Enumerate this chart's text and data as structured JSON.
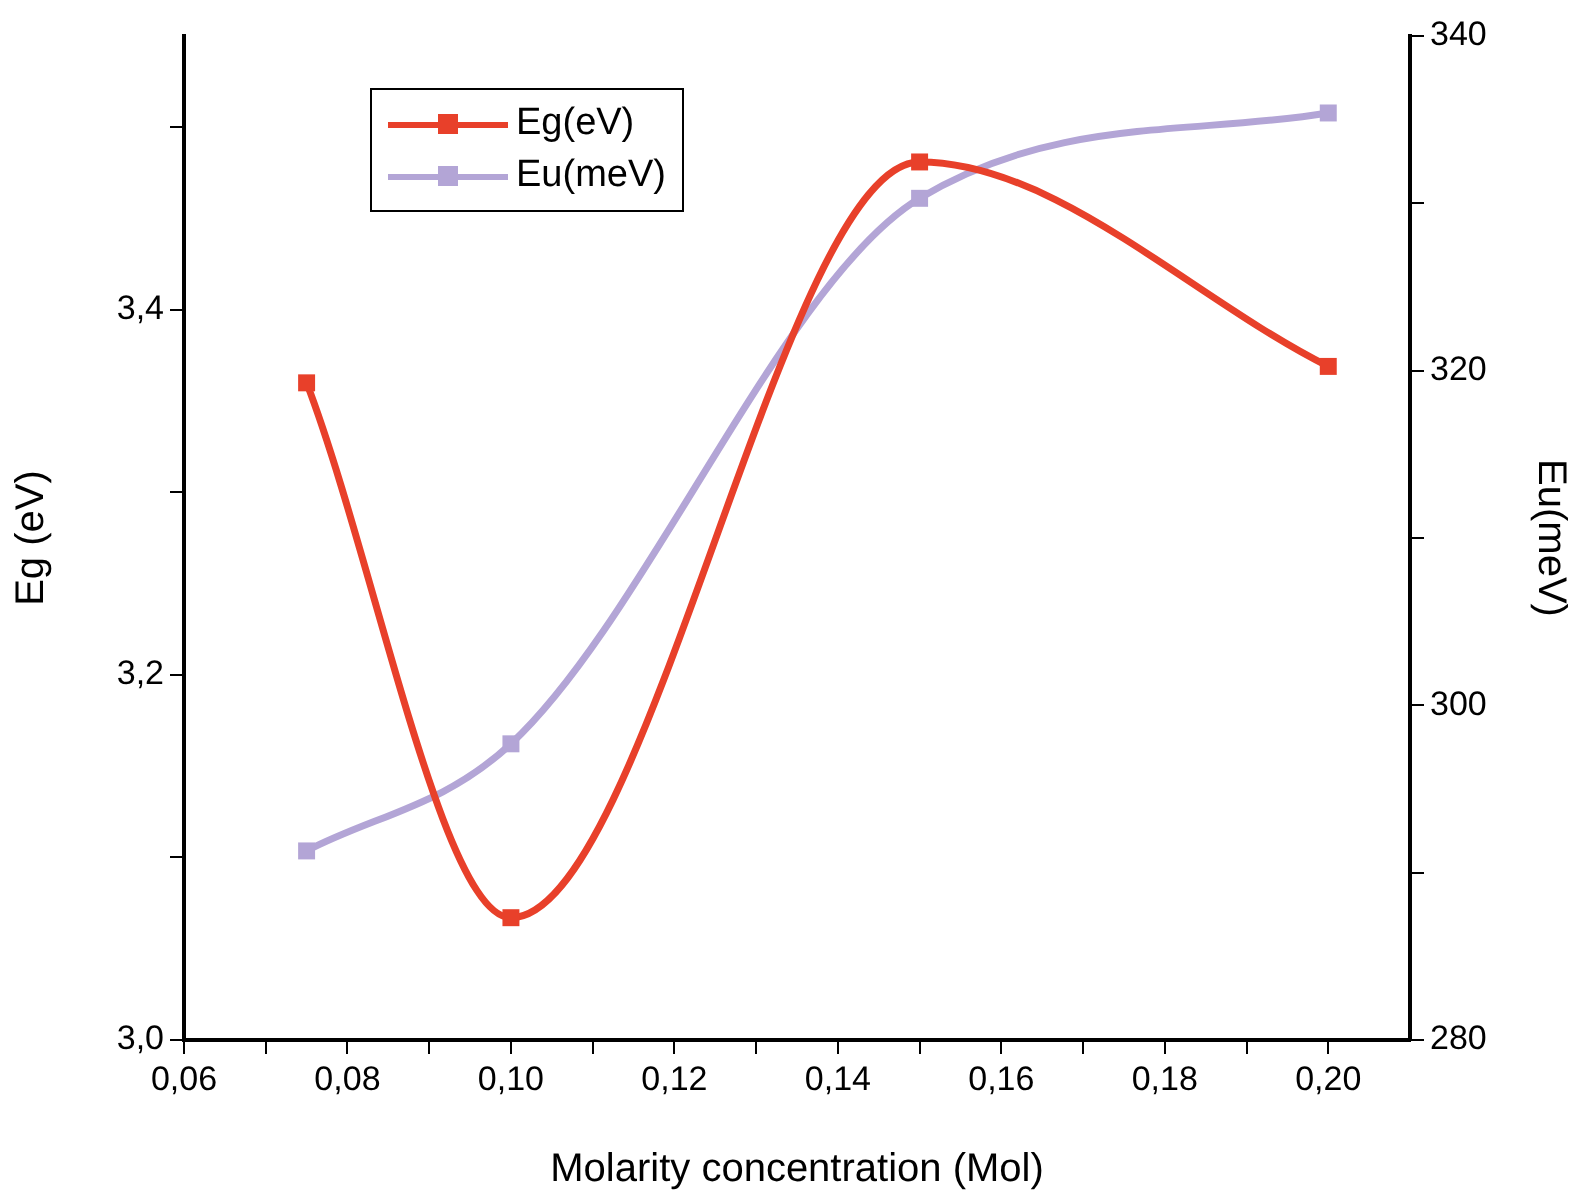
{
  "chart_data": {
    "type": "line",
    "xlabel": "Molarity concentration (Mol)",
    "ylabel": "Eg (eV)",
    "y2label": "Eu(meV)",
    "x": [
      0.075,
      0.1,
      0.15,
      0.2
    ],
    "series": [
      {
        "name": "Eg(eV)",
        "color": "#e8402a",
        "values": [
          3.36,
          3.067,
          3.481,
          3.369
        ]
      },
      {
        "name": "Eu(meV)",
        "color": "#b3a5d6",
        "axis": "y2",
        "values": [
          291.3,
          297.7,
          330.3,
          335.4
        ]
      }
    ],
    "xlim": [
      0.06,
      0.21
    ],
    "xticks": [
      {
        "value": 0.06,
        "label": "0,06"
      },
      {
        "value": 0.07,
        "label": null
      },
      {
        "value": 0.08,
        "label": "0,08"
      },
      {
        "value": 0.09,
        "label": null
      },
      {
        "value": 0.1,
        "label": "0,10"
      },
      {
        "value": 0.11,
        "label": null
      },
      {
        "value": 0.12,
        "label": "0,12"
      },
      {
        "value": 0.13,
        "label": null
      },
      {
        "value": 0.14,
        "label": "0,14"
      },
      {
        "value": 0.15,
        "label": null
      },
      {
        "value": 0.16,
        "label": "0,16"
      },
      {
        "value": 0.17,
        "label": null
      },
      {
        "value": 0.18,
        "label": "0,18"
      },
      {
        "value": 0.19,
        "label": null
      },
      {
        "value": 0.2,
        "label": "0,20"
      }
    ],
    "ylim": [
      3.0,
      3.55
    ],
    "yticks": [
      {
        "value": 3.0,
        "label": "3,0"
      },
      {
        "value": 3.1,
        "label": null
      },
      {
        "value": 3.2,
        "label": "3,2"
      },
      {
        "value": 3.3,
        "label": null
      },
      {
        "value": 3.4,
        "label": "3,4"
      },
      {
        "value": 3.5,
        "label": null
      }
    ],
    "y2lim": [
      280,
      340
    ],
    "y2ticks": [
      280,
      {
        "value": 290,
        "label": null
      },
      300,
      {
        "value": 310,
        "label": null
      },
      320,
      {
        "value": 330,
        "label": null
      },
      340
    ],
    "grid": false,
    "legend": "top left",
    "marker": "square",
    "line_style": "solid"
  }
}
